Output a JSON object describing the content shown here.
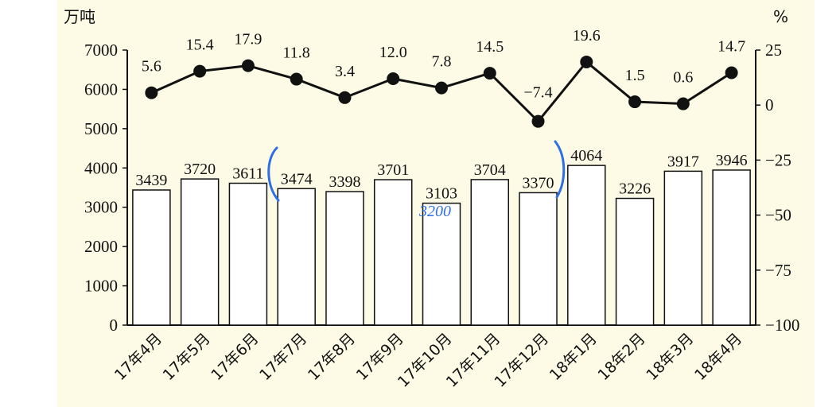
{
  "chart_data": {
    "type": "bar+line",
    "left_unit": "万吨",
    "right_unit": "%",
    "categories": [
      "17年4月",
      "17年5月",
      "17年6月",
      "17年7月",
      "17年8月",
      "17年9月",
      "17年10月",
      "17年11月",
      "17年12月",
      "18年1月",
      "18年2月",
      "18年3月",
      "18年4月"
    ],
    "bar_values": [
      3439,
      3720,
      3611,
      3474,
      3398,
      3701,
      3103,
      3704,
      3370,
      4064,
      3226,
      3917,
      3946
    ],
    "line_values": [
      5.6,
      15.4,
      17.9,
      11.8,
      3.4,
      12.0,
      7.8,
      14.5,
      -7.4,
      19.6,
      1.5,
      0.6,
      14.7
    ],
    "line_labels": [
      "5.6",
      "15.4",
      "17.9",
      "11.8",
      "3.4",
      "12.0",
      "7.8",
      "14.5",
      "−7.4",
      "19.6",
      "1.5",
      "0.6",
      "14.7"
    ],
    "left_ticks": [
      "0",
      "1000",
      "2000",
      "3000",
      "4000",
      "5000",
      "6000",
      "7000"
    ],
    "right_ticks": [
      "25",
      "0",
      "−25",
      "−50",
      "−75",
      "−100"
    ],
    "ylim_left": [
      0,
      7000
    ],
    "ylim_right": [
      -100,
      25
    ],
    "annotations": {
      "handwritten_value": "3200",
      "bracket_color": "#2f6fe6"
    },
    "colors": {
      "bar_fill": "#ffffff",
      "bar_stroke": "#111111",
      "line": "#111111",
      "background": "#fdfbe6"
    }
  }
}
